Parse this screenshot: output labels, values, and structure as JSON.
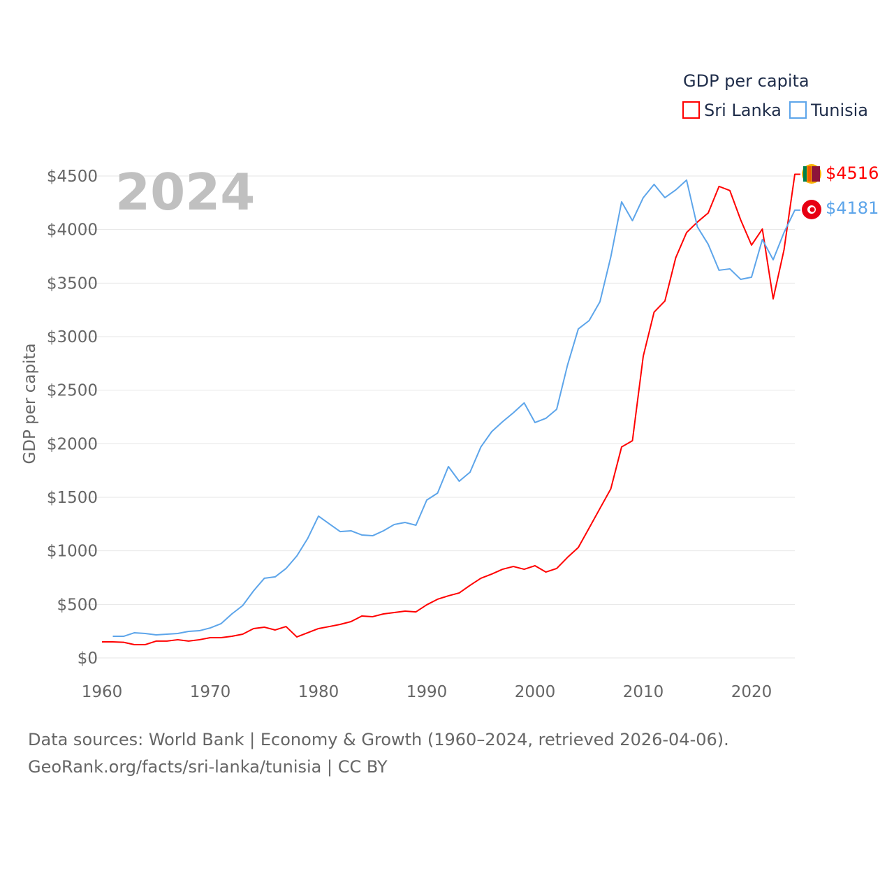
{
  "chart_data": {
    "type": "line",
    "title": "GDP per capita",
    "year_label": "2024",
    "ylabel": "GDP per capita",
    "xlabel": "",
    "ylim": [
      0,
      4500
    ],
    "xlim": [
      1960,
      2024
    ],
    "yticks": [
      0,
      500,
      1000,
      1500,
      2000,
      2500,
      3000,
      3500,
      4000,
      4500
    ],
    "ytick_labels": [
      "$0",
      "$500",
      "$1000",
      "$1500",
      "$2000",
      "$2500",
      "$3000",
      "$3500",
      "$4000",
      "$4500"
    ],
    "xticks": [
      1960,
      1970,
      1980,
      1990,
      2000,
      2010,
      2020
    ],
    "xtick_labels": [
      "1960",
      "1970",
      "1980",
      "1990",
      "2000",
      "2010",
      "2020"
    ],
    "grid": true,
    "legend_position": "top-right",
    "series": [
      {
        "name": "Sri Lanka",
        "color": "#ff0000",
        "end_label": "$4516",
        "start": 1960,
        "values": [
          150,
          150,
          146,
          124,
          124,
          157,
          157,
          170,
          157,
          170,
          189,
          189,
          202,
          222,
          274,
          287,
          261,
          293,
          196,
          235,
          274,
          293,
          313,
          339,
          391,
          385,
          411,
          424,
          437,
          430,
          496,
          548,
          580,
          607,
          678,
          744,
          783,
          828,
          854,
          828,
          861,
          802,
          835,
          939,
          1031,
          1213,
          1396,
          1578,
          1970,
          2028,
          2818,
          3229,
          3333,
          3737,
          3972,
          4070,
          4155,
          4403,
          4364,
          4090,
          3855,
          4005,
          3353,
          3810,
          4516
        ]
      },
      {
        "name": "Tunisia",
        "color": "#5da5ea",
        "end_label": "$4181",
        "start": 1961,
        "values": [
          202,
          202,
          235,
          228,
          215,
          222,
          228,
          248,
          254,
          280,
          320,
          411,
          489,
          626,
          744,
          757,
          835,
          952,
          1115,
          1324,
          1252,
          1180,
          1187,
          1148,
          1141,
          1187,
          1246,
          1265,
          1239,
          1474,
          1539,
          1787,
          1650,
          1735,
          1970,
          2113,
          2205,
          2289,
          2381,
          2198,
          2237,
          2322,
          2733,
          3072,
          3150,
          3326,
          3744,
          4259,
          4083,
          4298,
          4422,
          4298,
          4370,
          4462,
          4025,
          3862,
          3620,
          3633,
          3535,
          3555,
          3907,
          3718,
          3972,
          4181
        ]
      }
    ]
  },
  "footer": {
    "line1": "Data sources: World Bank | Economy & Growth (1960–2024, retrieved 2026-04-06).",
    "line2": "GeoRank.org/facts/sri-lanka/tunisia | CC BY"
  }
}
